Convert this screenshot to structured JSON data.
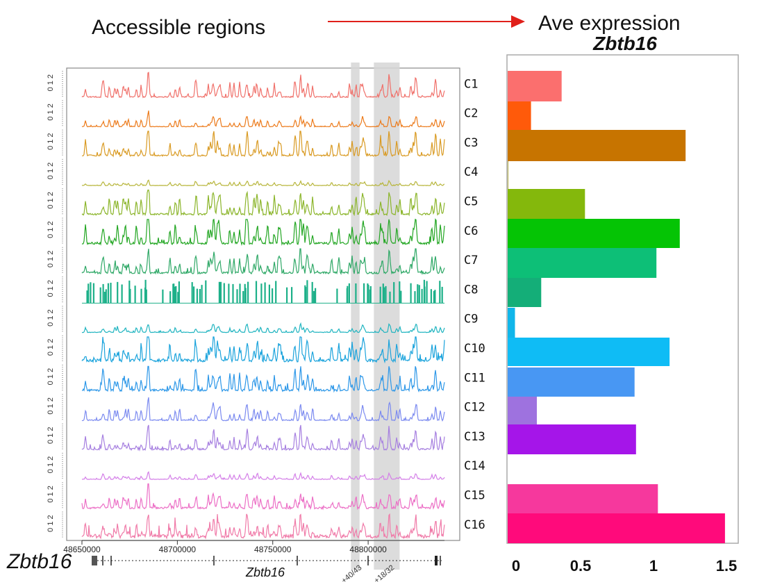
{
  "headings": {
    "left": "Accessible regions",
    "right": "Ave expression",
    "right_gene": "Zbtb16"
  },
  "gene_label": "Zbtb16",
  "colors": {
    "arrow": "#e0201a",
    "highlight": "#d6d6d6",
    "panel_border": "#999999"
  },
  "chart_data": [
    {
      "type": "area",
      "title": "Accessible regions",
      "xlabel": "",
      "x_ticks": [
        "48650000",
        "48700000",
        "48750000",
        "48800000"
      ],
      "xlim": [
        48650000,
        48840000
      ],
      "y_tick_label": "0 1 2",
      "gene_track": {
        "name": "Zbtb16",
        "peak_labels": [
          "+40/43",
          "+18/32"
        ],
        "highlight_regions": [
          [
            48791000,
            48795500
          ],
          [
            48803000,
            48816500
          ]
        ]
      },
      "series": [
        {
          "name": "C1",
          "color": "#f0706a",
          "intensity": 0.65,
          "noise": 0.12,
          "bars": false
        },
        {
          "name": "C2",
          "color": "#ec7a1a",
          "intensity": 0.35,
          "noise": 0.05,
          "bars": false
        },
        {
          "name": "C3",
          "color": "#d99a22",
          "intensity": 0.75,
          "noise": 0.15,
          "bars": false
        },
        {
          "name": "C4",
          "color": "#b7b53a",
          "intensity": 0.15,
          "noise": 0.03,
          "bars": false
        },
        {
          "name": "C5",
          "color": "#8bb52a",
          "intensity": 0.85,
          "noise": 0.18,
          "bars": false
        },
        {
          "name": "C6",
          "color": "#22a622",
          "intensity": 0.95,
          "noise": 0.22,
          "bars": false
        },
        {
          "name": "C7",
          "color": "#2ea866",
          "intensity": 0.75,
          "noise": 0.2,
          "bars": false
        },
        {
          "name": "C8",
          "color": "#1db089",
          "intensity": 1.0,
          "noise": 0.0,
          "bars": true
        },
        {
          "name": "C9",
          "color": "#1fb4c0",
          "intensity": 0.25,
          "noise": 0.05,
          "bars": false
        },
        {
          "name": "C10",
          "color": "#1aa3dc",
          "intensity": 0.85,
          "noise": 0.3,
          "bars": false
        },
        {
          "name": "C11",
          "color": "#2c97e8",
          "intensity": 0.75,
          "noise": 0.22,
          "bars": false
        },
        {
          "name": "C12",
          "color": "#7b8af0",
          "intensity": 0.55,
          "noise": 0.1,
          "bars": false
        },
        {
          "name": "C13",
          "color": "#a67fe0",
          "intensity": 0.6,
          "noise": 0.18,
          "bars": false
        },
        {
          "name": "C14",
          "color": "#d47fe8",
          "intensity": 0.2,
          "noise": 0.05,
          "bars": false
        },
        {
          "name": "C15",
          "color": "#ec6fc6",
          "intensity": 0.55,
          "noise": 0.18,
          "bars": false
        },
        {
          "name": "C16",
          "color": "#f07aa8",
          "intensity": 0.6,
          "noise": 0.4,
          "bars": false
        }
      ]
    },
    {
      "type": "bar",
      "orientation": "horizontal",
      "title": "Ave expression Zbtb16",
      "xlim": [
        0,
        1.6
      ],
      "x_ticks": [
        "0",
        "0.5",
        "1",
        "1.5"
      ],
      "x_tick_values": [
        0,
        0.5,
        1,
        1.5
      ],
      "categories": [
        "C1",
        "C2",
        "C3",
        "C4",
        "C5",
        "C6",
        "C7",
        "C8",
        "C9",
        "C10",
        "C11",
        "C12",
        "C13",
        "C14",
        "C15",
        "C16"
      ],
      "values": [
        0.37,
        0.16,
        1.22,
        0.005,
        0.53,
        1.18,
        1.02,
        0.23,
        0.05,
        1.11,
        0.87,
        0.2,
        0.88,
        0.0,
        1.03,
        1.49
      ],
      "colors": [
        "#fb6f6e",
        "#ff5a0a",
        "#c77400",
        "#b5b04a",
        "#84b80c",
        "#05c405",
        "#0dbf77",
        "#14ae78",
        "#10b6ea",
        "#0fbcf5",
        "#4897f3",
        "#9e72df",
        "#a515e9",
        "#e87bdc",
        "#f6389d",
        "#ff0a7b"
      ]
    }
  ]
}
